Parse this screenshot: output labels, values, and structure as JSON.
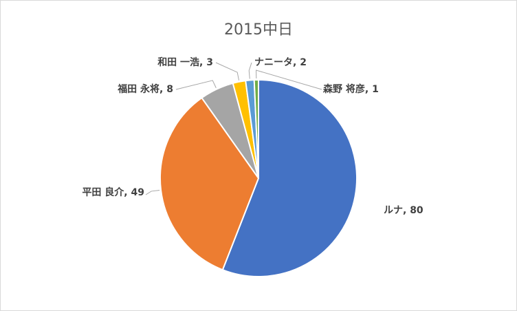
{
  "chart_data": {
    "type": "pie",
    "title": "2015中日",
    "labels": [
      "ルナ",
      "平田 良介",
      "福田 永将",
      "和田 一浩",
      "ナニータ",
      "森野 将彦"
    ],
    "values": [
      80,
      49,
      8,
      3,
      2,
      1
    ],
    "colors": [
      "#4472C4",
      "#ED7D31",
      "#A5A5A5",
      "#FFC000",
      "#5B9BD5",
      "#70AD47"
    ],
    "data_labels": [
      "ルナ, 80",
      "平田 良介, 49",
      "福田 永将, 8",
      "和田 一浩, 3",
      "ナニータ, 2",
      "森野 将彦, 1"
    ],
    "legend": "none"
  }
}
